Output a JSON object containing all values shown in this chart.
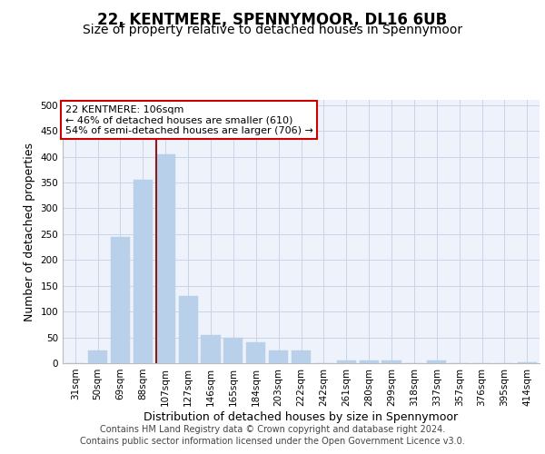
{
  "title1": "22, KENTMERE, SPENNYMOOR, DL16 6UB",
  "title2": "Size of property relative to detached houses in Spennymoor",
  "xlabel": "Distribution of detached houses by size in Spennymoor",
  "ylabel": "Number of detached properties",
  "categories": [
    "31sqm",
    "50sqm",
    "69sqm",
    "88sqm",
    "107sqm",
    "127sqm",
    "146sqm",
    "165sqm",
    "184sqm",
    "203sqm",
    "222sqm",
    "242sqm",
    "261sqm",
    "280sqm",
    "299sqm",
    "318sqm",
    "337sqm",
    "357sqm",
    "376sqm",
    "395sqm",
    "414sqm"
  ],
  "values": [
    0,
    25,
    245,
    355,
    405,
    130,
    55,
    50,
    40,
    25,
    25,
    0,
    5,
    5,
    5,
    0,
    5,
    0,
    0,
    0,
    2
  ],
  "bar_color": "#b8d0ea",
  "bar_edge_color": "#b8d0ea",
  "highlight_index": 4,
  "highlight_line_color": "#8b1a1a",
  "annotation_text": "22 KENTMERE: 106sqm\n← 46% of detached houses are smaller (610)\n54% of semi-detached houses are larger (706) →",
  "annotation_box_color": "white",
  "annotation_box_edge_color": "#cc0000",
  "ylim": [
    0,
    510
  ],
  "yticks": [
    0,
    50,
    100,
    150,
    200,
    250,
    300,
    350,
    400,
    450,
    500
  ],
  "grid_color": "#c8d4e8",
  "background_color": "#eef2fa",
  "footer_line1": "Contains HM Land Registry data © Crown copyright and database right 2024.",
  "footer_line2": "Contains public sector information licensed under the Open Government Licence v3.0.",
  "title_fontsize": 12,
  "subtitle_fontsize": 10,
  "xlabel_fontsize": 9,
  "ylabel_fontsize": 9,
  "tick_fontsize": 7.5,
  "footer_fontsize": 7
}
